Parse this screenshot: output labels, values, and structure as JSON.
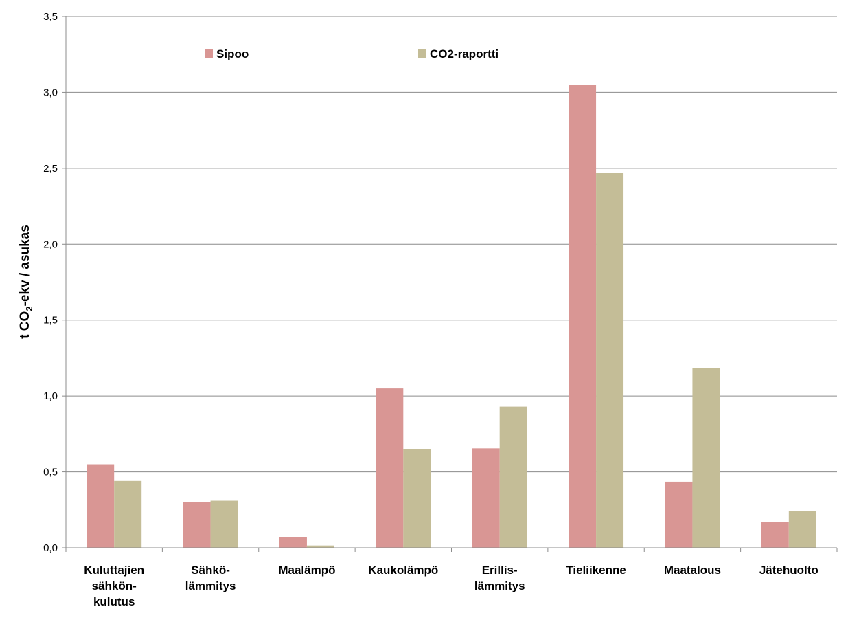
{
  "chart_data": {
    "type": "bar",
    "categories": [
      [
        "Kuluttajien",
        "sähkön-",
        "kulutus"
      ],
      [
        "Sähkö-",
        "lämmitys"
      ],
      [
        "Maalämpö"
      ],
      [
        "Kaukolämpö"
      ],
      [
        "Erillis-",
        "lämmitys"
      ],
      [
        "Tieliikenne"
      ],
      [
        "Maatalous"
      ],
      [
        "Jätehuolto"
      ]
    ],
    "series": [
      {
        "name": "Sipoo",
        "color": "#d99694",
        "values": [
          0.55,
          0.3,
          0.07,
          1.05,
          0.655,
          3.05,
          0.435,
          0.17
        ]
      },
      {
        "name": "CO2-raportti",
        "color": "#c4bd97",
        "values": [
          0.44,
          0.31,
          0.015,
          0.65,
          0.93,
          2.47,
          1.185,
          0.24
        ]
      }
    ],
    "ylabel": {
      "main": "t CO",
      "sub": "2",
      "rest": "-ekv / asukas"
    },
    "ylim": [
      0,
      3.5
    ],
    "yticks": [
      "0,0",
      "0,5",
      "1,0",
      "1,5",
      "2,0",
      "2,5",
      "3,0",
      "3,5"
    ],
    "grid": true,
    "legend_position": "top"
  }
}
